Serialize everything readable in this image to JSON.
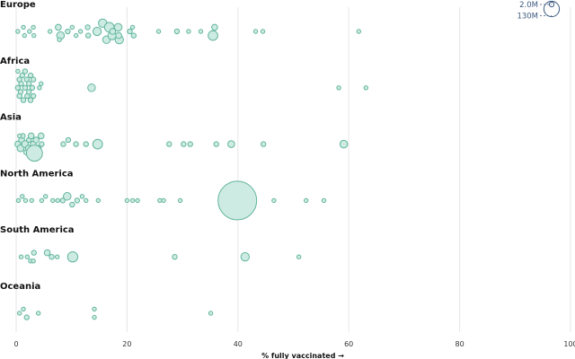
{
  "chart_data": {
    "type": "scatter",
    "xlabel": "% fully vaccinated →",
    "xlim": [
      0,
      100
    ],
    "xticks": [
      0,
      20,
      40,
      60,
      80,
      100
    ],
    "grid": true,
    "colors": {
      "fill": "#cdebe2",
      "stroke": "#62b59c",
      "legend": "#3d5a80"
    },
    "legend": {
      "position": "top-right",
      "entries": [
        {
          "label": "2.0M",
          "value": 2000000
        },
        {
          "label": "130M",
          "value": 130000000
        }
      ]
    },
    "regions": [
      {
        "name": "Europe",
        "points": [
          {
            "x": 0.3,
            "y": 0,
            "pop": 1
          },
          {
            "x": 1.3,
            "y": -1,
            "pop": 1
          },
          {
            "x": 1.5,
            "y": 1,
            "pop": 1
          },
          {
            "x": 2.4,
            "y": 0,
            "pop": 1
          },
          {
            "x": 3.1,
            "y": -1,
            "pop": 1
          },
          {
            "x": 3.2,
            "y": 1,
            "pop": 1
          },
          {
            "x": 6.1,
            "y": 0,
            "pop": 1
          },
          {
            "x": 7.6,
            "y": -1,
            "pop": 3
          },
          {
            "x": 8.0,
            "y": 1,
            "pop": 5
          },
          {
            "x": 7.8,
            "y": 2,
            "pop": 1
          },
          {
            "x": 9.3,
            "y": 0,
            "pop": 2
          },
          {
            "x": 10.1,
            "y": -1,
            "pop": 1
          },
          {
            "x": 10.8,
            "y": 1,
            "pop": 1
          },
          {
            "x": 11.6,
            "y": 0,
            "pop": 1
          },
          {
            "x": 12.9,
            "y": -1,
            "pop": 2
          },
          {
            "x": 13.0,
            "y": 1,
            "pop": 2
          },
          {
            "x": 14.6,
            "y": 0,
            "pop": 6
          },
          {
            "x": 15.6,
            "y": -2,
            "pop": 6
          },
          {
            "x": 16.3,
            "y": 2,
            "pop": 5
          },
          {
            "x": 16.8,
            "y": -1,
            "pop": 8
          },
          {
            "x": 17.3,
            "y": 1,
            "pop": 6
          },
          {
            "x": 17.4,
            "y": 0,
            "pop": 3
          },
          {
            "x": 18.4,
            "y": -1,
            "pop": 5
          },
          {
            "x": 18.6,
            "y": 2,
            "pop": 6
          },
          {
            "x": 18.5,
            "y": 1,
            "pop": 3
          },
          {
            "x": 20.5,
            "y": 0,
            "pop": 2
          },
          {
            "x": 21.0,
            "y": -1,
            "pop": 1
          },
          {
            "x": 21.2,
            "y": 1,
            "pop": 2
          },
          {
            "x": 25.7,
            "y": 0,
            "pop": 1
          },
          {
            "x": 29.0,
            "y": 0,
            "pop": 2
          },
          {
            "x": 31.1,
            "y": 0,
            "pop": 1
          },
          {
            "x": 33.3,
            "y": 0,
            "pop": 1
          },
          {
            "x": 35.5,
            "y": 1,
            "pop": 8
          },
          {
            "x": 35.8,
            "y": -1,
            "pop": 3
          },
          {
            "x": 43.2,
            "y": 0,
            "pop": 1
          },
          {
            "x": 44.5,
            "y": 0,
            "pop": 1
          },
          {
            "x": 61.8,
            "y": 0,
            "pop": 1
          }
        ]
      },
      {
        "name": "Africa",
        "points": [
          {
            "x": 0.3,
            "y": 0,
            "pop": 2
          },
          {
            "x": 0.9,
            "y": -1,
            "pop": 2
          },
          {
            "x": 0.8,
            "y": 1,
            "pop": 2
          },
          {
            "x": 0.6,
            "y": -2,
            "pop": 2
          },
          {
            "x": 0.6,
            "y": 2,
            "pop": 2
          },
          {
            "x": 1.1,
            "y": -3,
            "pop": 2
          },
          {
            "x": 1.3,
            "y": 3,
            "pop": 2
          },
          {
            "x": 1.6,
            "y": 0,
            "pop": 2
          },
          {
            "x": 1.9,
            "y": -2,
            "pop": 2
          },
          {
            "x": 2.0,
            "y": 2,
            "pop": 2
          },
          {
            "x": 2.3,
            "y": -1,
            "pop": 2
          },
          {
            "x": 2.3,
            "y": 1,
            "pop": 2
          },
          {
            "x": 2.9,
            "y": 0,
            "pop": 2
          },
          {
            "x": 3.1,
            "y": -2,
            "pop": 2
          },
          {
            "x": 3.1,
            "y": 2,
            "pop": 2
          },
          {
            "x": 0.3,
            "y": -4,
            "pop": 1
          },
          {
            "x": 1.6,
            "y": -4,
            "pop": 2
          },
          {
            "x": 2.6,
            "y": -3,
            "pop": 2
          },
          {
            "x": 2.6,
            "y": 3,
            "pop": 2
          },
          {
            "x": 4.2,
            "y": 0,
            "pop": 1
          },
          {
            "x": 4.5,
            "y": -1,
            "pop": 1
          },
          {
            "x": 13.6,
            "y": 0,
            "pop": 5
          },
          {
            "x": 58.2,
            "y": 0,
            "pop": 1
          },
          {
            "x": 63.1,
            "y": 0,
            "pop": 1
          }
        ]
      },
      {
        "name": "Asia",
        "points": [
          {
            "x": 0.3,
            "y": 0,
            "pop": 3
          },
          {
            "x": 1.0,
            "y": -1,
            "pop": 3
          },
          {
            "x": 0.8,
            "y": 1,
            "pop": 4
          },
          {
            "x": 1.2,
            "y": -2,
            "pop": 2
          },
          {
            "x": 1.6,
            "y": 0,
            "pop": 4
          },
          {
            "x": 2.3,
            "y": -1,
            "pop": 2
          },
          {
            "x": 2.2,
            "y": 1,
            "pop": 3
          },
          {
            "x": 2.7,
            "y": -2,
            "pop": 3
          },
          {
            "x": 3.1,
            "y": 0,
            "pop": 3
          },
          {
            "x": 3.3,
            "y": 2,
            "pop": 3
          },
          {
            "x": 3.6,
            "y": -1,
            "pop": 3
          },
          {
            "x": 4.0,
            "y": 1,
            "pop": 3
          },
          {
            "x": 4.5,
            "y": -2,
            "pop": 3
          },
          {
            "x": 4.6,
            "y": 0,
            "pop": 2
          },
          {
            "x": 1.8,
            "y": 2,
            "pop": 2
          },
          {
            "x": 0.6,
            "y": -2,
            "pop": 1
          },
          {
            "x": 3.3,
            "y": 2.2,
            "pop": 22
          },
          {
            "x": 8.5,
            "y": 0,
            "pop": 2
          },
          {
            "x": 9.4,
            "y": -1,
            "pop": 2
          },
          {
            "x": 10.8,
            "y": 0,
            "pop": 2
          },
          {
            "x": 12.6,
            "y": 0,
            "pop": 2
          },
          {
            "x": 14.7,
            "y": 0,
            "pop": 8
          },
          {
            "x": 27.6,
            "y": 0,
            "pop": 2
          },
          {
            "x": 30.2,
            "y": 0,
            "pop": 2
          },
          {
            "x": 31.4,
            "y": 0,
            "pop": 2
          },
          {
            "x": 36.1,
            "y": 0,
            "pop": 2
          },
          {
            "x": 38.8,
            "y": 0,
            "pop": 4
          },
          {
            "x": 44.6,
            "y": 0,
            "pop": 2
          },
          {
            "x": 59.1,
            "y": 0,
            "pop": 5
          }
        ]
      },
      {
        "name": "North America",
        "points": [
          {
            "x": 0.4,
            "y": 0,
            "pop": 1
          },
          {
            "x": 1.1,
            "y": -1,
            "pop": 1
          },
          {
            "x": 1.7,
            "y": 0,
            "pop": 1
          },
          {
            "x": 2.8,
            "y": 0,
            "pop": 1
          },
          {
            "x": 4.6,
            "y": 0,
            "pop": 1
          },
          {
            "x": 5.3,
            "y": -1,
            "pop": 1
          },
          {
            "x": 6.6,
            "y": 0,
            "pop": 1
          },
          {
            "x": 7.5,
            "y": 0,
            "pop": 1
          },
          {
            "x": 8.4,
            "y": 0,
            "pop": 2
          },
          {
            "x": 9.2,
            "y": -1,
            "pop": 5
          },
          {
            "x": 10.1,
            "y": 1,
            "pop": 2
          },
          {
            "x": 11.0,
            "y": 0,
            "pop": 2
          },
          {
            "x": 11.9,
            "y": -1,
            "pop": 1
          },
          {
            "x": 12.6,
            "y": 0,
            "pop": 1
          },
          {
            "x": 14.8,
            "y": 0,
            "pop": 1
          },
          {
            "x": 20.0,
            "y": 0,
            "pop": 1
          },
          {
            "x": 21.0,
            "y": 0,
            "pop": 1
          },
          {
            "x": 21.9,
            "y": 0,
            "pop": 1
          },
          {
            "x": 25.9,
            "y": 0,
            "pop": 1
          },
          {
            "x": 26.6,
            "y": 0,
            "pop": 1
          },
          {
            "x": 29.6,
            "y": 0,
            "pop": 1
          },
          {
            "x": 39.9,
            "y": -3,
            "pop": 1
          },
          {
            "x": 39.9,
            "y": 0,
            "pop": 128
          },
          {
            "x": 46.5,
            "y": 0,
            "pop": 1
          },
          {
            "x": 52.3,
            "y": 0,
            "pop": 1
          },
          {
            "x": 55.5,
            "y": 0,
            "pop": 1
          }
        ]
      },
      {
        "name": "South America",
        "points": [
          {
            "x": 0.9,
            "y": 0,
            "pop": 1
          },
          {
            "x": 2.0,
            "y": 0,
            "pop": 1
          },
          {
            "x": 2.6,
            "y": 1,
            "pop": 1
          },
          {
            "x": 3.2,
            "y": -1,
            "pop": 2
          },
          {
            "x": 3.1,
            "y": 1,
            "pop": 1
          },
          {
            "x": 5.6,
            "y": -1,
            "pop": 3
          },
          {
            "x": 6.4,
            "y": 0,
            "pop": 2
          },
          {
            "x": 7.4,
            "y": 0,
            "pop": 1
          },
          {
            "x": 10.2,
            "y": 0,
            "pop": 9
          },
          {
            "x": 28.6,
            "y": 0,
            "pop": 2
          },
          {
            "x": 41.3,
            "y": 0,
            "pop": 6
          },
          {
            "x": 51.0,
            "y": 0,
            "pop": 1
          }
        ]
      },
      {
        "name": "Oceania",
        "points": [
          {
            "x": 0.6,
            "y": 0,
            "pop": 1
          },
          {
            "x": 1.3,
            "y": -1,
            "pop": 1
          },
          {
            "x": 1.9,
            "y": 1,
            "pop": 2
          },
          {
            "x": 4.0,
            "y": 0,
            "pop": 1
          },
          {
            "x": 14.1,
            "y": -1,
            "pop": 1
          },
          {
            "x": 14.1,
            "y": 1,
            "pop": 1
          },
          {
            "x": 35.1,
            "y": 0,
            "pop": 1
          }
        ]
      }
    ]
  }
}
